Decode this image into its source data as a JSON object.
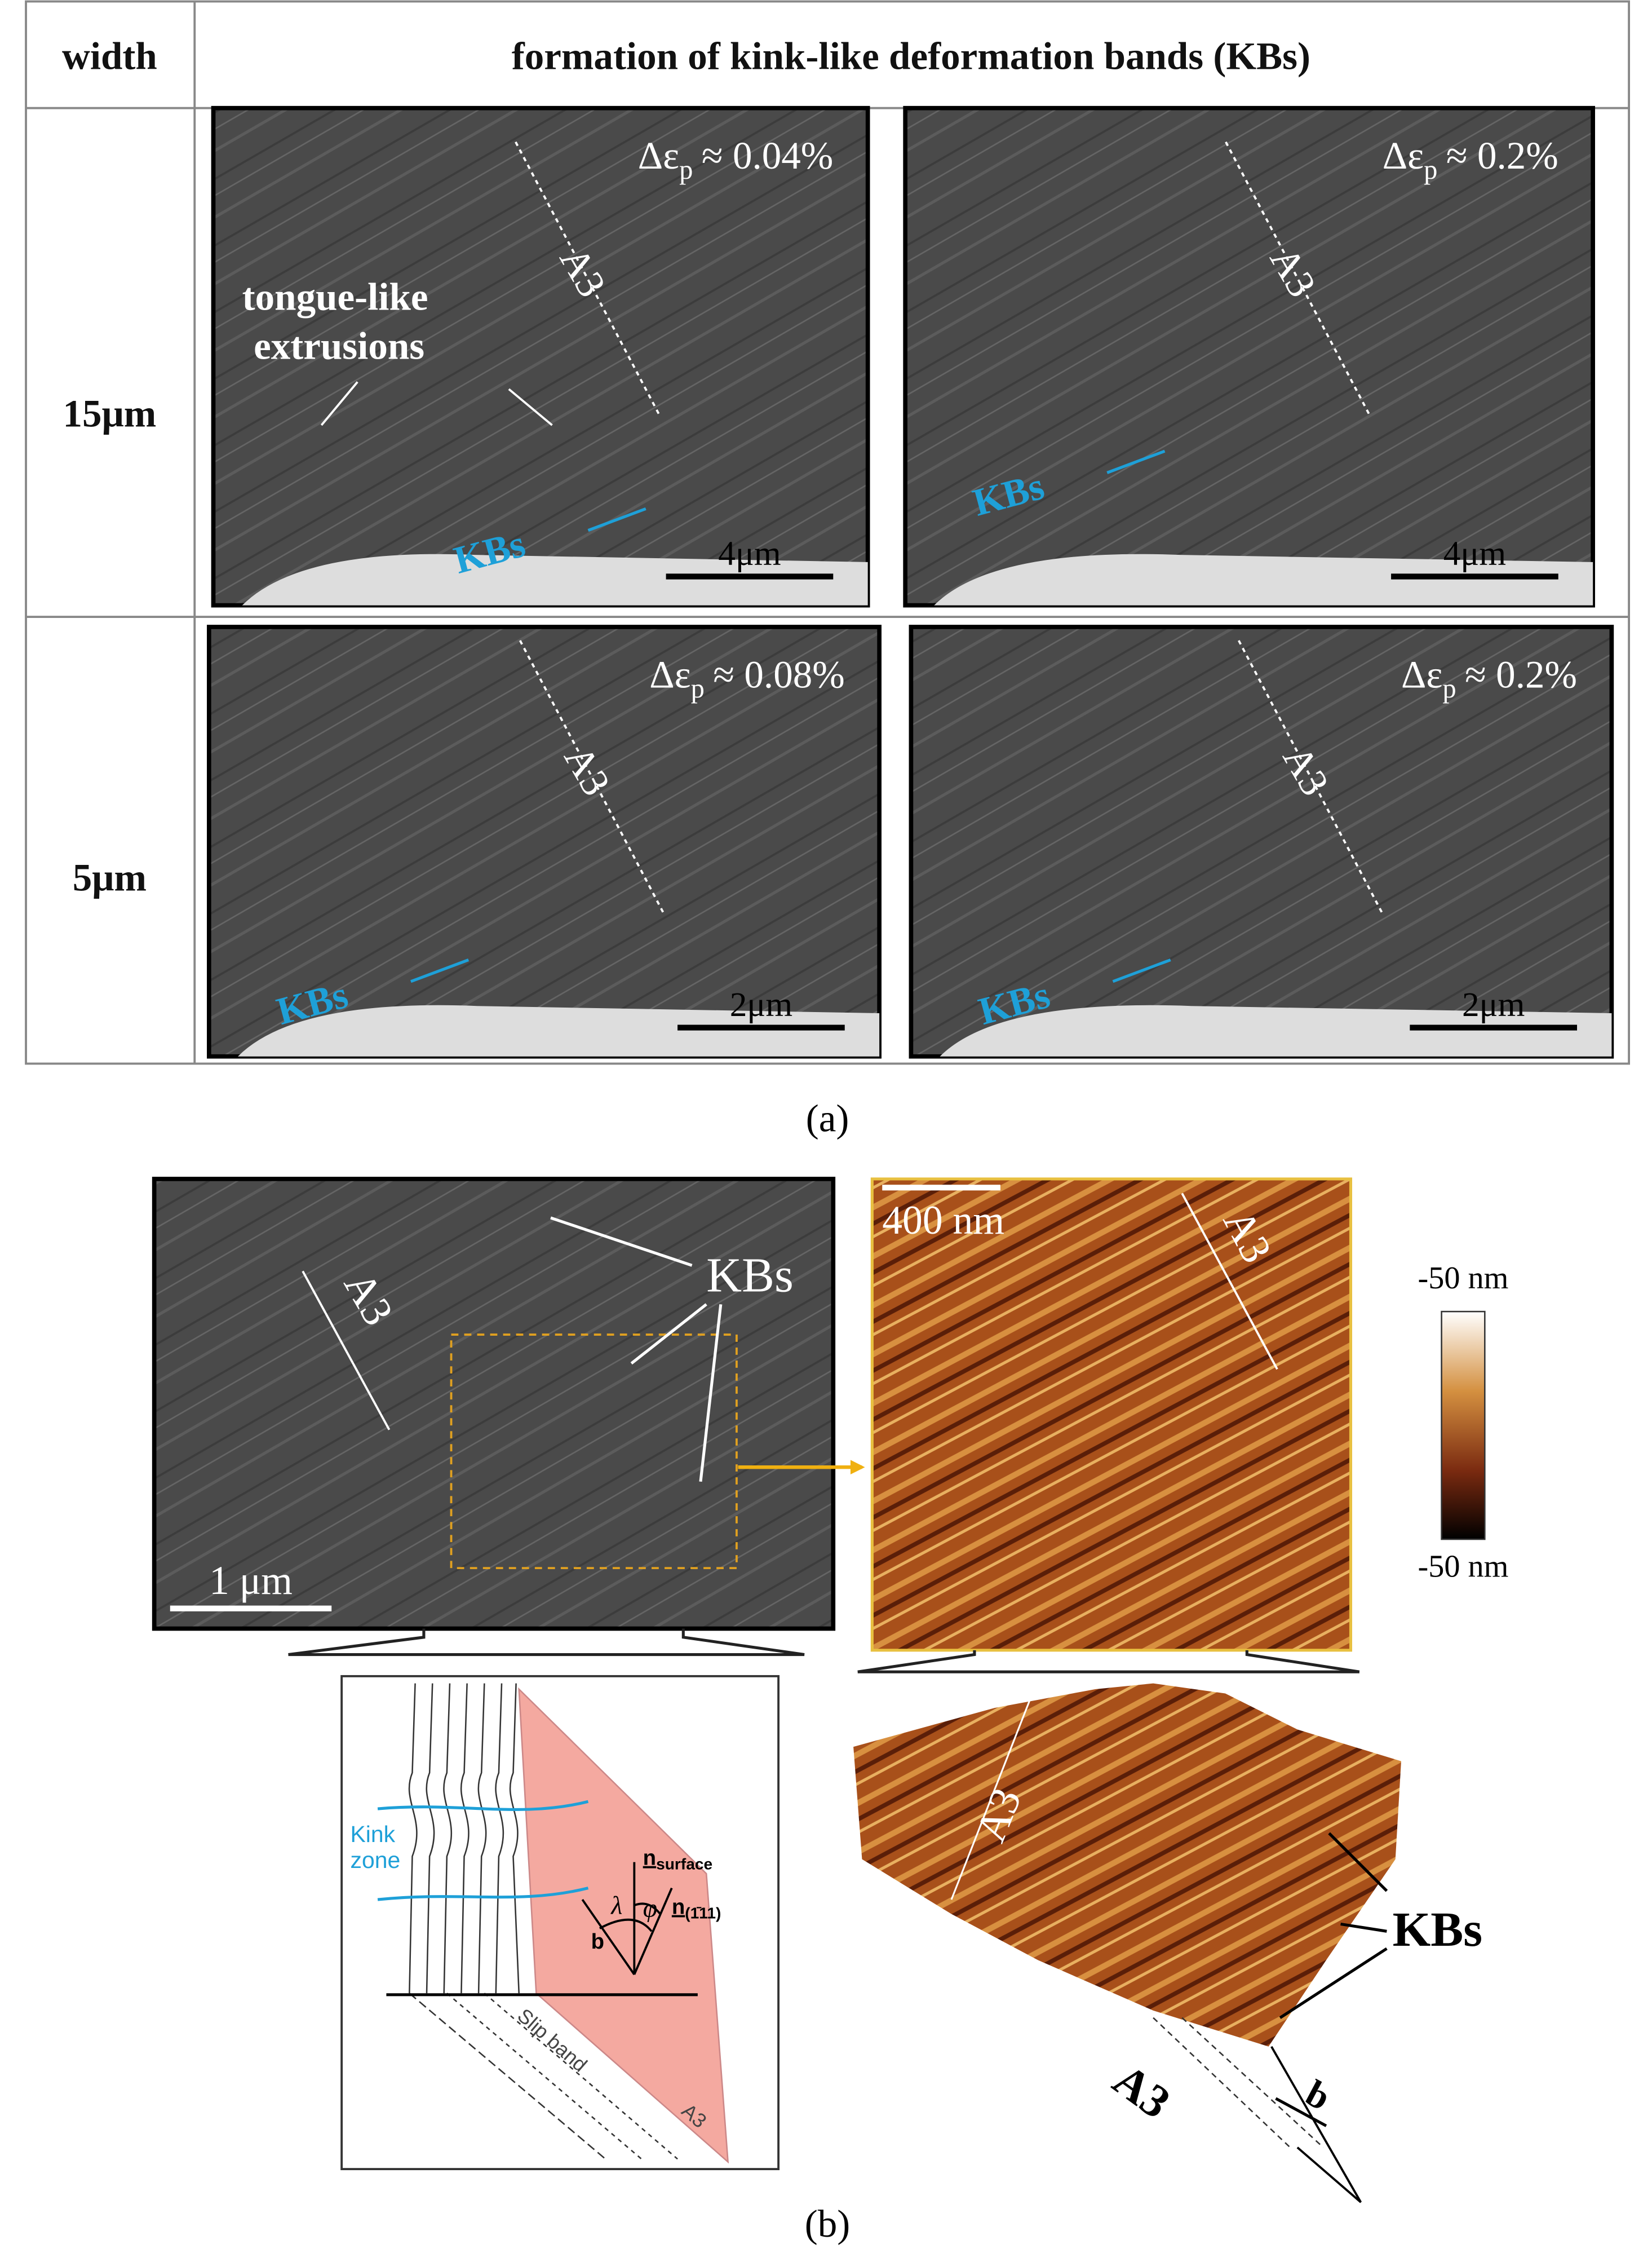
{
  "table": {
    "header": [
      "width",
      "formation of kink-like deformation bands (KBs)"
    ],
    "rows": [
      "15μm",
      "5μm"
    ]
  },
  "panels": [
    {
      "strain_symbol": "Δε",
      "strain_sub": "p",
      "strain_value": "≈ 0.04%",
      "plane": "A3",
      "kbs": "KBs",
      "scale_bar": "4μm",
      "note_1": "tongue-like",
      "note_2": "extrusions"
    },
    {
      "strain_symbol": "Δε",
      "strain_sub": "p",
      "strain_value": "≈ 0.2%",
      "plane": "A3",
      "kbs": "KBs",
      "scale_bar": "4μm"
    },
    {
      "strain_symbol": "Δε",
      "strain_sub": "p",
      "strain_value": "≈ 0.08%",
      "plane": "A3",
      "kbs": "KBs",
      "scale_bar": "2μm"
    },
    {
      "strain_symbol": "Δε",
      "strain_sub": "p",
      "strain_value": "≈ 0.2%",
      "plane": "A3",
      "kbs": "KBs",
      "scale_bar": "2μm"
    }
  ],
  "caption_a": "(a)",
  "caption_b": "(b)",
  "part_b": {
    "sem": {
      "plane": "A3",
      "kbs": "KBs",
      "scale_bar": "1 μm"
    },
    "afm": {
      "scale_bar": "400 nm",
      "plane": "A3"
    },
    "colorbar": {
      "top": "-50 nm",
      "bottom": "-50 nm"
    },
    "schematic": {
      "kink": "Kink",
      "zone": "zone",
      "n_surface": "n",
      "n_surface_sub": "surface",
      "lambda": "λ",
      "phi": "φ",
      "b": "b",
      "n_111": "n",
      "n_111_sub": "(1̄11)",
      "slip_band": "Slip band",
      "plane": "A3"
    },
    "surface_3d": {
      "plane": "A3",
      "kbs": "KBs",
      "plane_2": "A3",
      "b": "b"
    }
  }
}
